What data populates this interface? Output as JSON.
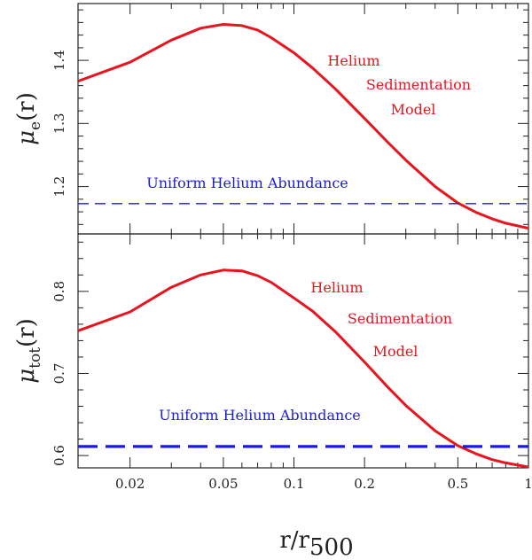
{
  "chart_data": [
    {
      "type": "line",
      "panel": "top",
      "ylabel": {
        "symbol": "μ",
        "subscript": "e",
        "arg": "(r)"
      },
      "xscale": "log",
      "xlim": [
        0.012,
        1.0
      ],
      "ylim": [
        1.125,
        1.49
      ],
      "yticks": [
        1.2,
        1.3,
        1.4
      ],
      "ytick_labels": [
        "1.2",
        "1.3",
        "1.4"
      ],
      "series": [
        {
          "name": "Helium Sedimentation Model",
          "color": "#e8141e",
          "style": "solid",
          "x": [
            0.012,
            0.02,
            0.03,
            0.04,
            0.05,
            0.06,
            0.07,
            0.08,
            0.1,
            0.12,
            0.15,
            0.2,
            0.25,
            0.3,
            0.4,
            0.5,
            0.6,
            0.7,
            0.8,
            1.0
          ],
          "y": [
            1.367,
            1.397,
            1.432,
            1.451,
            1.457,
            1.455,
            1.448,
            1.436,
            1.412,
            1.388,
            1.355,
            1.308,
            1.271,
            1.242,
            1.2,
            1.174,
            1.159,
            1.149,
            1.142,
            1.134
          ]
        },
        {
          "name": "Uniform Helium Abundance",
          "color": "#1a1ae6",
          "style": "dashed",
          "x": [
            0.012,
            1.0
          ],
          "y": [
            1.173,
            1.173
          ]
        }
      ],
      "annotations": [
        {
          "text": "Helium",
          "color": "#e8141e"
        },
        {
          "text": "Sedimentation",
          "color": "#e8141e"
        },
        {
          "text": "Model",
          "color": "#e8141e"
        },
        {
          "text": "Uniform Helium Abundance",
          "color": "#1a1ae6"
        }
      ]
    },
    {
      "type": "line",
      "panel": "bottom",
      "ylabel": {
        "symbol": "μ",
        "subscript": "tot",
        "arg": "(r)"
      },
      "xlabel": {
        "base": "r/r",
        "subscript": "500"
      },
      "xscale": "log",
      "xlim": [
        0.012,
        1.0
      ],
      "ylim": [
        0.585,
        0.87
      ],
      "yticks": [
        0.6,
        0.7,
        0.8
      ],
      "ytick_labels": [
        "0.6",
        "0.7",
        "0.8"
      ],
      "xticks": [
        0.02,
        0.05,
        0.1,
        0.2,
        0.5,
        1.0
      ],
      "xtick_labels": [
        "0.02",
        "0.05",
        "0.1",
        "0.2",
        "0.5",
        "1"
      ],
      "series": [
        {
          "name": "Helium Sedimentation Model",
          "color": "#e8141e",
          "style": "solid",
          "x": [
            0.012,
            0.02,
            0.03,
            0.04,
            0.05,
            0.06,
            0.07,
            0.08,
            0.1,
            0.12,
            0.15,
            0.2,
            0.25,
            0.3,
            0.4,
            0.5,
            0.6,
            0.7,
            0.8,
            1.0
          ],
          "y": [
            0.752,
            0.775,
            0.805,
            0.82,
            0.826,
            0.825,
            0.819,
            0.811,
            0.792,
            0.776,
            0.751,
            0.714,
            0.684,
            0.661,
            0.63,
            0.612,
            0.602,
            0.595,
            0.591,
            0.586
          ]
        },
        {
          "name": "Uniform Helium Abundance",
          "color": "#1a1ae6",
          "style": "dashed",
          "x": [
            0.012,
            1.0
          ],
          "y": [
            0.611,
            0.611
          ]
        }
      ],
      "annotations": [
        {
          "text": "Helium",
          "color": "#e8141e"
        },
        {
          "text": "Sedimentation",
          "color": "#e8141e"
        },
        {
          "text": "Model",
          "color": "#e8141e"
        },
        {
          "text": "Uniform Helium Abundance",
          "color": "#1a1ae6"
        }
      ]
    }
  ]
}
